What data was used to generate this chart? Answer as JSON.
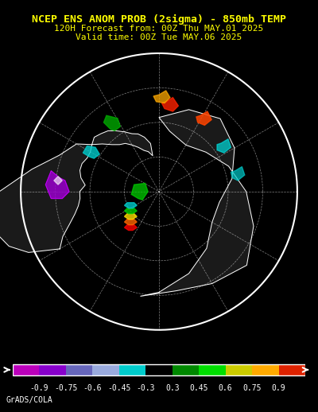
{
  "title_line1": "NCEP ENS ANOM PROB (2sigma) - 850mb TEMP",
  "title_line2": "120H Forecast from: 00Z Thu MAY.01 2025",
  "title_line3": "Valid time: 00Z Tue MAY.06 2025",
  "colorbar_values": [
    -0.9,
    -0.75,
    -0.6,
    -0.45,
    -0.3,
    0.3,
    0.45,
    0.6,
    0.75,
    0.9
  ],
  "colorbar_labels": [
    "-0.9",
    "-0.75",
    "-0.6",
    "-0.45",
    "-0.3",
    "0.3",
    "0.45",
    "0.6",
    "0.75",
    "0.9"
  ],
  "colorbar_colors": [
    "#cc00cc",
    "#9900cc",
    "#6600cc",
    "#99aadd",
    "#00cccc",
    "#000000",
    "#00aa00",
    "#00dd00",
    "#dddd00",
    "#ffaa00",
    "#ff0000"
  ],
  "background_color": "#000000",
  "title_color": "#ffff00",
  "credit_text": "GrADS/COLA",
  "credit_color": "#ffffff",
  "map_border_color": "#ffffff"
}
